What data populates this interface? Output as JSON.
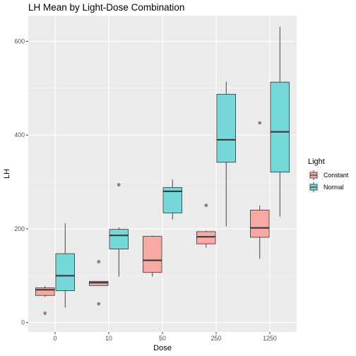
{
  "chart_data": {
    "type": "boxplot",
    "title": "LH Mean by Light-Dose Combination",
    "xlabel": "Dose",
    "ylabel": "LH",
    "categories": [
      "0",
      "10",
      "50",
      "250",
      "1250"
    ],
    "ylim": [
      -20,
      655
    ],
    "yticks": [
      0,
      200,
      400,
      600
    ],
    "grid": true,
    "legend": {
      "title": "Light",
      "placement": "right",
      "entries": [
        "Constant",
        "Normal"
      ]
    },
    "series": [
      {
        "name": "Constant",
        "fill": "#F8A9A3",
        "boxes": [
          {
            "category": "0",
            "whisker_low": 55,
            "q1": 58,
            "median": 70,
            "q3": 74,
            "whisker_high": 78,
            "outliers": [
              20
            ]
          },
          {
            "category": "10",
            "whisker_low": 79,
            "q1": 79,
            "median": 85,
            "q3": 88,
            "whisker_high": 88,
            "outliers": [
              40,
              130
            ]
          },
          {
            "category": "50",
            "whisker_low": 98,
            "q1": 107,
            "median": 133,
            "q3": 184,
            "whisker_high": 186,
            "outliers": []
          },
          {
            "category": "250",
            "whisker_low": 160,
            "q1": 168,
            "median": 183,
            "q3": 194,
            "whisker_high": 196,
            "outliers": [
              250
            ]
          },
          {
            "category": "1250",
            "whisker_low": 136,
            "q1": 182,
            "median": 202,
            "q3": 240,
            "whisker_high": 250,
            "outliers": [
              426
            ]
          }
        ]
      },
      {
        "name": "Normal",
        "fill": "#76D7D9",
        "boxes": [
          {
            "category": "0",
            "whisker_low": 32,
            "q1": 68,
            "median": 100,
            "q3": 147,
            "whisker_high": 212,
            "outliers": []
          },
          {
            "category": "10",
            "whisker_low": 98,
            "q1": 157,
            "median": 186,
            "q3": 199,
            "whisker_high": 203,
            "outliers": [
              294
            ]
          },
          {
            "category": "50",
            "whisker_low": 220,
            "q1": 234,
            "median": 280,
            "q3": 288,
            "whisker_high": 305,
            "outliers": []
          },
          {
            "category": "250",
            "whisker_low": 205,
            "q1": 342,
            "median": 390,
            "q3": 487,
            "whisker_high": 514,
            "outliers": []
          },
          {
            "category": "1250",
            "whisker_low": 226,
            "q1": 321,
            "median": 407,
            "q3": 513,
            "whisker_high": 631,
            "outliers": []
          }
        ]
      }
    ]
  }
}
